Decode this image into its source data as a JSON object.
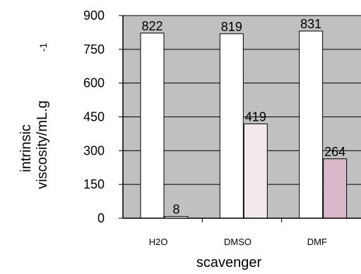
{
  "chart_data": {
    "type": "bar",
    "categories": [
      "H2O",
      "DMSO",
      "DMF"
    ],
    "series": [
      {
        "values": [
          822,
          819,
          831
        ],
        "color": "#ffffff"
      },
      {
        "values": [
          8,
          419,
          264
        ],
        "colors": [
          "#ffffff",
          "#f1e9ec",
          "#d8b8c8"
        ]
      }
    ],
    "xlabel": "scavenger",
    "ylabel_line1": "intrinsic",
    "ylabel_line2": "viscosity/mL.g",
    "ylabel_superscript": "-1",
    "ylim": [
      0,
      900
    ],
    "yticks": [
      "0",
      "150",
      "300",
      "450",
      "600",
      "750",
      "900"
    ],
    "grid": true,
    "background_color": "#c0c0c0",
    "gridline_color": "#000000"
  }
}
